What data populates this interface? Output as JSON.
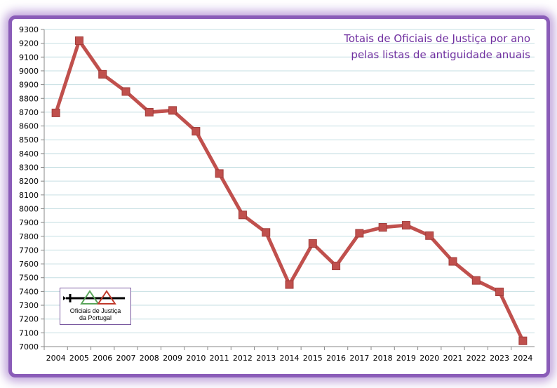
{
  "chart_data": {
    "type": "line",
    "title_lines": [
      "Totais de Oficiais de Justiça por ano",
      "pelas listas de antiguidade anuais"
    ],
    "categories": [
      "2004",
      "2005",
      "2006",
      "2007",
      "2008",
      "2009",
      "2010",
      "2011",
      "2012",
      "2013",
      "2014",
      "2015",
      "2016",
      "2017",
      "2018",
      "2019",
      "2020",
      "2021",
      "2022",
      "2023",
      "2024"
    ],
    "values": [
      8695,
      9219,
      8975,
      8850,
      8700,
      8713,
      8562,
      8255,
      7955,
      7828,
      7450,
      7748,
      7585,
      7822,
      7865,
      7880,
      7805,
      7618,
      7480,
      7397,
      7042
    ],
    "ylim": [
      7000,
      9300
    ],
    "yticks": [
      7000,
      7100,
      7200,
      7300,
      7400,
      7500,
      7600,
      7700,
      7800,
      7900,
      8000,
      8100,
      8200,
      8300,
      8400,
      8500,
      8600,
      8700,
      8800,
      8900,
      9000,
      9100,
      9200,
      9300
    ],
    "grid": true,
    "legend": "none",
    "series_color": "#c0504d",
    "frame_color": "#8a5cb8"
  },
  "logo": {
    "text_line1": "Oficiais de Justiça",
    "text_line2": "da Portugal"
  }
}
